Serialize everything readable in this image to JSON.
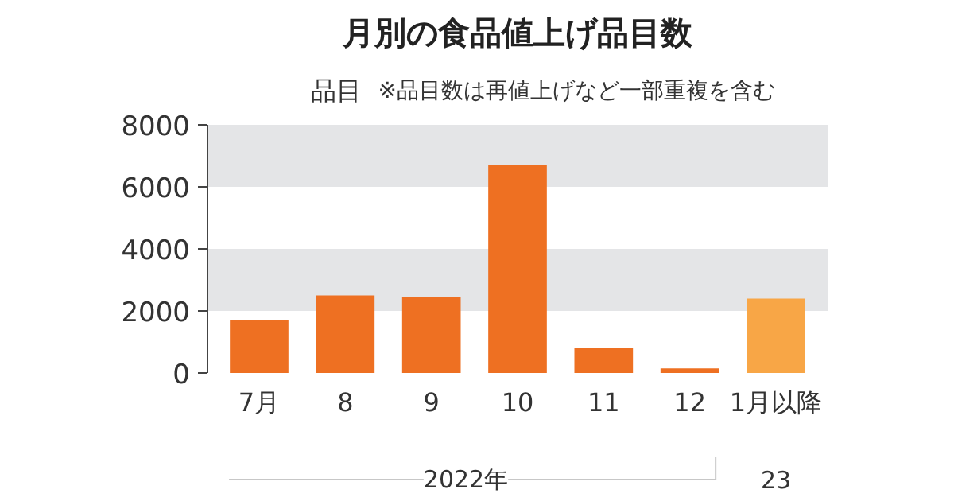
{
  "chart_data": {
    "type": "bar",
    "title": "月別の食品値上げ品目数",
    "ylabel": "品目",
    "categories": [
      "7月",
      "8",
      "9",
      "10",
      "11",
      "12",
      "1月以降"
    ],
    "values": [
      1700,
      2500,
      2450,
      6700,
      800,
      150,
      2400
    ],
    "colors": [
      "#ee7022",
      "#ee7022",
      "#ee7022",
      "#ee7022",
      "#ee7022",
      "#ee7022",
      "#f8a646"
    ],
    "ylim": [
      0,
      8000
    ],
    "yticks": [
      0,
      2000,
      4000,
      6000,
      8000
    ],
    "grid": false,
    "bands": [
      {
        "axis": "y",
        "from": 2000,
        "to": 4000,
        "color": "#e4e5e7"
      },
      {
        "axis": "y",
        "from": 6000,
        "to": 8000,
        "color": "#e4e5e7"
      }
    ],
    "annotations": [
      "※品目数は再値上げなど一部重複を含む",
      "2022年",
      "23"
    ]
  }
}
